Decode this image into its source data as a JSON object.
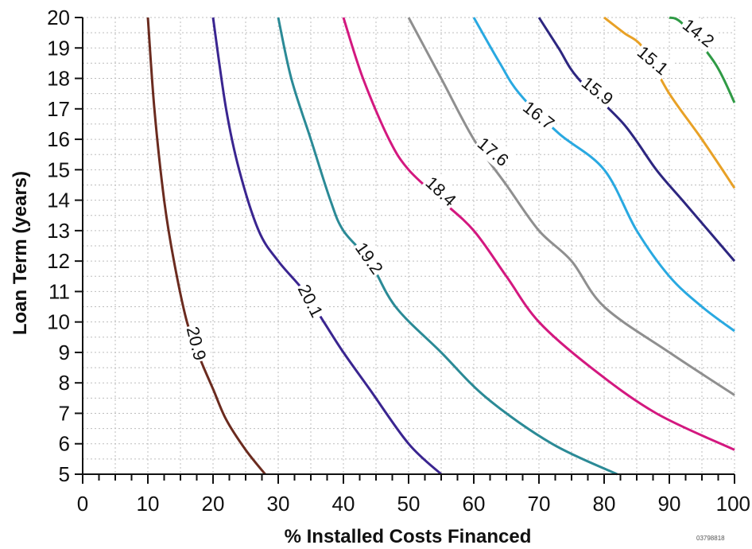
{
  "chart_data": {
    "type": "line",
    "xlabel": "% Installed Costs Financed",
    "ylabel": "Loan Term (years)",
    "xlim": [
      0,
      100
    ],
    "ylim": [
      5,
      20
    ],
    "x_ticks": [
      "0",
      "10",
      "20",
      "30",
      "40",
      "50",
      "60",
      "70",
      "80",
      "90",
      "100"
    ],
    "y_ticks": [
      "5",
      "6",
      "7",
      "8",
      "9",
      "10",
      "11",
      "12",
      "13",
      "14",
      "15",
      "16",
      "17",
      "18",
      "19",
      "20"
    ],
    "grid": true,
    "figure_id": "03798818",
    "series": [
      {
        "name": "20.9",
        "color": "#6b2b1f",
        "label_at": [
          17.5,
          9.3
        ],
        "label_angle": 76,
        "points": [
          [
            10,
            20
          ],
          [
            11,
            17
          ],
          [
            12.5,
            14
          ],
          [
            14,
            12
          ],
          [
            16,
            10
          ],
          [
            18,
            8.8
          ],
          [
            20,
            7.8
          ],
          [
            22,
            6.8
          ],
          [
            25,
            5.8
          ],
          [
            28,
            5
          ]
        ]
      },
      {
        "name": "20.1",
        "color": "#3a2590",
        "label_at": [
          35,
          10.7
        ],
        "label_angle": 63,
        "points": [
          [
            20,
            20
          ],
          [
            22,
            17
          ],
          [
            24,
            15
          ],
          [
            27,
            13
          ],
          [
            30,
            12
          ],
          [
            34,
            11
          ],
          [
            37,
            10
          ],
          [
            40,
            9
          ],
          [
            44,
            7.8
          ],
          [
            50,
            6
          ],
          [
            55,
            5
          ]
        ]
      },
      {
        "name": "19.2",
        "color": "#2b8a96",
        "label_at": [
          44,
          12.1
        ],
        "label_angle": 55,
        "points": [
          [
            30,
            20
          ],
          [
            32,
            18
          ],
          [
            35,
            16
          ],
          [
            38,
            14
          ],
          [
            40,
            13
          ],
          [
            44,
            12
          ],
          [
            48,
            10.5
          ],
          [
            55,
            9
          ],
          [
            62,
            7.5
          ],
          [
            72,
            6
          ],
          [
            82,
            5
          ]
        ]
      },
      {
        "name": "18.4",
        "color": "#d3187f",
        "label_at": [
          55,
          14.3
        ],
        "label_angle": 43,
        "points": [
          [
            40,
            20
          ],
          [
            43,
            18
          ],
          [
            47,
            16
          ],
          [
            50,
            15
          ],
          [
            55,
            14
          ],
          [
            60,
            13
          ],
          [
            65,
            11.5
          ],
          [
            70,
            10
          ],
          [
            78,
            8.5
          ],
          [
            88,
            7
          ],
          [
            100,
            5.8
          ]
        ]
      },
      {
        "name": "17.6",
        "color": "#8f8f8f",
        "label_at": [
          63,
          15.6
        ],
        "label_angle": 40,
        "points": [
          [
            50,
            20
          ],
          [
            55,
            18
          ],
          [
            60,
            16
          ],
          [
            65,
            14.5
          ],
          [
            70,
            13
          ],
          [
            75,
            12
          ],
          [
            80,
            10.5
          ],
          [
            90,
            9
          ],
          [
            100,
            7.6
          ]
        ]
      },
      {
        "name": "16.7",
        "color": "#29a9e1",
        "label_at": [
          70,
          16.8
        ],
        "label_angle": 38,
        "points": [
          [
            60,
            20
          ],
          [
            64,
            18.5
          ],
          [
            67,
            17.5
          ],
          [
            73,
            16.2
          ],
          [
            80,
            15
          ],
          [
            85,
            13
          ],
          [
            90,
            11.5
          ],
          [
            95,
            10.5
          ],
          [
            100,
            9.7
          ]
        ]
      },
      {
        "name": "15.9",
        "color": "#2d2680",
        "label_at": [
          79,
          17.6
        ],
        "label_angle": 38,
        "points": [
          [
            70,
            20
          ],
          [
            73,
            19
          ],
          [
            76,
            18
          ],
          [
            83,
            16.5
          ],
          [
            88,
            15
          ],
          [
            92,
            14
          ],
          [
            96,
            13
          ],
          [
            100,
            12
          ]
        ]
      },
      {
        "name": "15.1",
        "color": "#e8a126",
        "label_at": [
          87.5,
          18.6
        ],
        "label_angle": 40,
        "points": [
          [
            80,
            20
          ],
          [
            83,
            19.5
          ],
          [
            86,
            19
          ],
          [
            90,
            17.5
          ],
          [
            95,
            16
          ],
          [
            100,
            14.4
          ]
        ]
      },
      {
        "name": "14.2",
        "color": "#2f9a45",
        "label_at": [
          94.5,
          19.5
        ],
        "label_angle": 38,
        "points": [
          [
            90,
            20
          ],
          [
            92,
            19.8
          ],
          [
            97,
            18.5
          ],
          [
            100,
            17.2
          ]
        ]
      }
    ]
  }
}
